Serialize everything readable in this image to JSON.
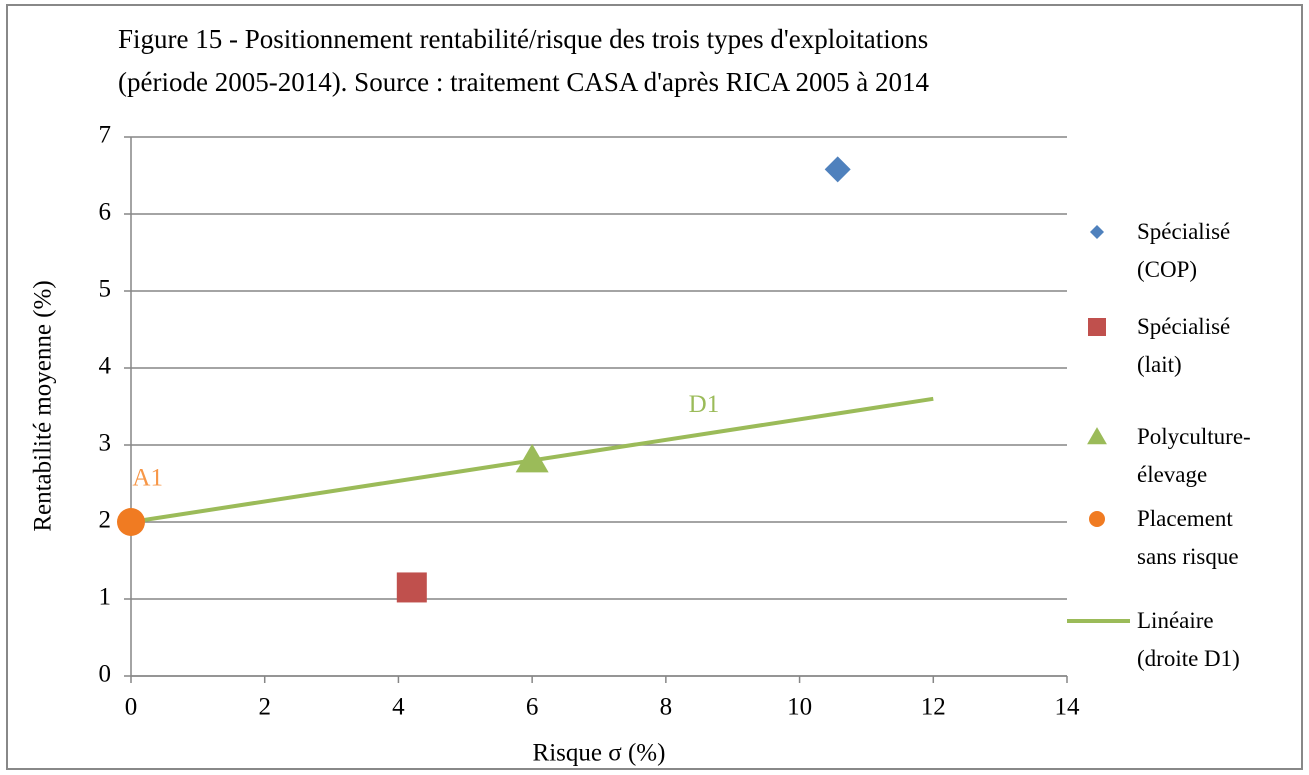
{
  "chart_data": {
    "type": "scatter",
    "title": [
      "Figure 15 - Positionnement rentabilité/risque des trois types d'exploitations",
      "(période 2005-2014). Source : traitement CASA d'après RICA 2005 à 2014"
    ],
    "x_label": "Risque σ (%)",
    "y_label": "Rentabilité moyenne (%)",
    "xlim": [
      0,
      14
    ],
    "xticks": [
      0,
      2,
      4,
      6,
      8,
      10,
      12,
      14
    ],
    "ylim": [
      0,
      7
    ],
    "yticks": [
      0,
      1,
      2,
      3,
      4,
      5,
      6,
      7
    ],
    "grid": true,
    "legend": "right",
    "series": [
      {
        "name": "Spécialisé (COP)",
        "color": "#4f81bd",
        "marker": "diamond",
        "x": [
          10.57
        ],
        "values": [
          6.58
        ]
      },
      {
        "name": "Spécialisé (lait)",
        "color": "#c0504d",
        "marker": "square",
        "x": [
          4.2
        ],
        "values": [
          1.15
        ]
      },
      {
        "name": "Polyculture-élevage",
        "color": "#9bbb59",
        "marker": "triangle",
        "x": [
          6.0
        ],
        "values": [
          2.8
        ]
      },
      {
        "name": "Placement sans risque",
        "color": "#f07b22",
        "marker": "circle",
        "x": [
          0
        ],
        "values": [
          2
        ]
      },
      {
        "name": "Linéaire (droite D1)",
        "color": "#9bbb59",
        "marker": "line",
        "x": [
          0,
          12
        ],
        "values": [
          2,
          3.6
        ]
      }
    ],
    "annotations": [
      {
        "text": "A1",
        "x": 0.25,
        "y": 2.55,
        "color": "#f79646"
      },
      {
        "text": "D1",
        "x": 8.57,
        "y": 3.5,
        "color": "#9bbb59"
      }
    ]
  }
}
